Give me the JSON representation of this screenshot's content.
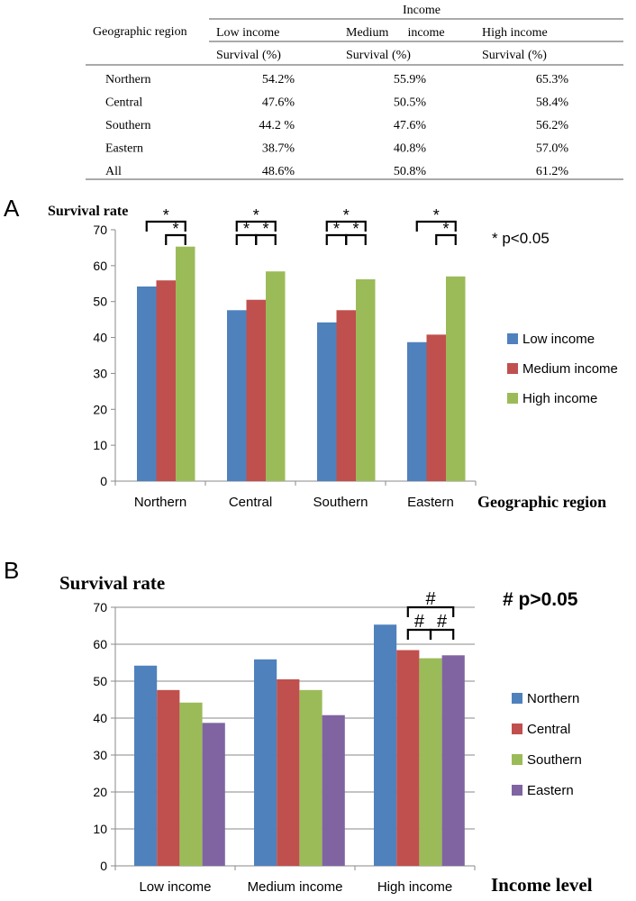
{
  "table": {
    "income_header": "Income",
    "region_header": "Geographic region",
    "columns": [
      "Low income",
      "Medium      income",
      "High income"
    ],
    "subheader": "Survival (%)",
    "rows": [
      {
        "region": "Northern",
        "values": [
          "54.2%",
          "55.9%",
          "65.3%"
        ]
      },
      {
        "region": "Central",
        "values": [
          "47.6%",
          "50.5%",
          "58.4%"
        ]
      },
      {
        "region": "Southern",
        "values": [
          "44.2 %",
          "47.6%",
          "56.2%"
        ]
      },
      {
        "region": "Eastern",
        "values": [
          "38.7%",
          "40.8%",
          "57.0%"
        ]
      },
      {
        "region": "All",
        "values": [
          "48.6%",
          "50.8%",
          "61.2%"
        ]
      }
    ]
  },
  "chart_data": [
    {
      "panel_label": "A",
      "type": "bar",
      "ylabel": "Survival rate",
      "xlabel": "Geographic region",
      "ylim": [
        0,
        70
      ],
      "yticks": [
        "0",
        "10",
        "20",
        "30",
        "40",
        "50",
        "60",
        "70"
      ],
      "categories": [
        "Northern",
        "Central",
        "Southern",
        "Eastern"
      ],
      "series": [
        {
          "name": "Low income",
          "color": "#4f81bd",
          "values": [
            54.2,
            47.6,
            44.2,
            38.7
          ]
        },
        {
          "name": "Medium income",
          "color": "#c0504d",
          "values": [
            55.9,
            50.5,
            47.6,
            40.8
          ]
        },
        {
          "name": "High income",
          "color": "#9bbb59",
          "values": [
            65.3,
            58.4,
            56.2,
            57.0
          ]
        }
      ],
      "significance_note": "* p<0.05",
      "significance_symbol": "*",
      "brackets": [
        {
          "group": 0,
          "from": 0,
          "to": 2,
          "level": 2
        },
        {
          "group": 0,
          "from": 1,
          "to": 2,
          "level": 1
        },
        {
          "group": 1,
          "from": 0,
          "to": 2,
          "level": 2
        },
        {
          "group": 1,
          "from": 0,
          "to": 1,
          "level": 1
        },
        {
          "group": 1,
          "from": 1,
          "to": 2,
          "level": 1
        },
        {
          "group": 2,
          "from": 0,
          "to": 2,
          "level": 2
        },
        {
          "group": 2,
          "from": 0,
          "to": 1,
          "level": 1
        },
        {
          "group": 2,
          "from": 1,
          "to": 2,
          "level": 1
        },
        {
          "group": 3,
          "from": 0,
          "to": 2,
          "level": 2
        },
        {
          "group": 3,
          "from": 1,
          "to": 2,
          "level": 1
        }
      ]
    },
    {
      "panel_label": "B",
      "type": "bar",
      "ylabel": "Survival rate",
      "xlabel": "Income level",
      "ylim": [
        0,
        70
      ],
      "yticks": [
        "0",
        "10",
        "20",
        "30",
        "40",
        "50",
        "60",
        "70"
      ],
      "categories": [
        "Low income",
        "Medium income",
        "High income"
      ],
      "series": [
        {
          "name": "Northern",
          "color": "#4f81bd",
          "values": [
            54.2,
            55.9,
            65.3
          ]
        },
        {
          "name": "Central",
          "color": "#c0504d",
          "values": [
            47.6,
            50.5,
            58.4
          ]
        },
        {
          "name": "Southern",
          "color": "#9bbb59",
          "values": [
            44.2,
            47.6,
            56.2
          ]
        },
        {
          "name": "Eastern",
          "color": "#8064a2",
          "values": [
            38.7,
            40.8,
            57.0
          ]
        }
      ],
      "significance_note": "# p>0.05",
      "significance_symbol": "#",
      "brackets": [
        {
          "group": 2,
          "from": 1,
          "to": 3,
          "level": 2
        },
        {
          "group": 2,
          "from": 1,
          "to": 2,
          "level": 1
        },
        {
          "group": 2,
          "from": 2,
          "to": 3,
          "level": 1
        }
      ]
    }
  ]
}
